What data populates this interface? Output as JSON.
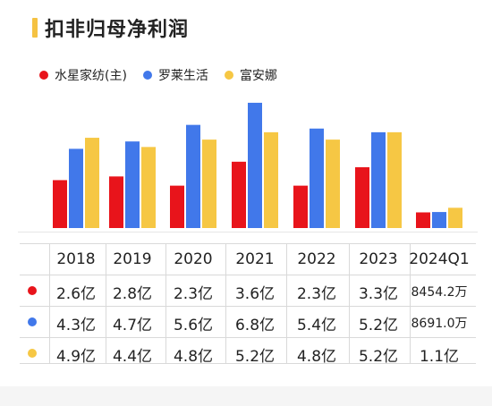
{
  "title": "扣非归母净利润",
  "colors": {
    "accent": "#f5c242",
    "red": "#e8141b",
    "blue": "#4178ea",
    "yellow": "#f6c744"
  },
  "legend": [
    {
      "name": "水星家纺(主)",
      "color": "#e8141b"
    },
    {
      "name": "罗莱生活",
      "color": "#4178ea"
    },
    {
      "name": "富安娜",
      "color": "#f6c744"
    }
  ],
  "chart_data": {
    "type": "bar",
    "title": "扣非归母净利润",
    "categories": [
      "2018",
      "2019",
      "2020",
      "2021",
      "2022",
      "2023",
      "2024Q1"
    ],
    "series": [
      {
        "name": "水星家纺(主)",
        "values": [
          2.6,
          2.8,
          2.3,
          3.6,
          2.3,
          3.3,
          0.85
        ],
        "labels": [
          "2.6亿",
          "2.8亿",
          "2.3亿",
          "3.6亿",
          "2.3亿",
          "3.3亿",
          "8454.2万"
        ]
      },
      {
        "name": "罗莱生活",
        "values": [
          4.3,
          4.7,
          5.6,
          6.8,
          5.4,
          5.2,
          0.87
        ],
        "labels": [
          "4.3亿",
          "4.7亿",
          "5.6亿",
          "6.8亿",
          "5.4亿",
          "5.2亿",
          "8691.0万"
        ]
      },
      {
        "name": "富安娜",
        "values": [
          4.9,
          4.4,
          4.8,
          5.2,
          4.8,
          5.2,
          1.1
        ],
        "labels": [
          "4.9亿",
          "4.4亿",
          "4.8亿",
          "5.2亿",
          "4.8亿",
          "5.2亿",
          "1.1亿"
        ]
      }
    ],
    "ylim": [
      0,
      7.0
    ],
    "legend_position": "top-left",
    "grid": false
  }
}
